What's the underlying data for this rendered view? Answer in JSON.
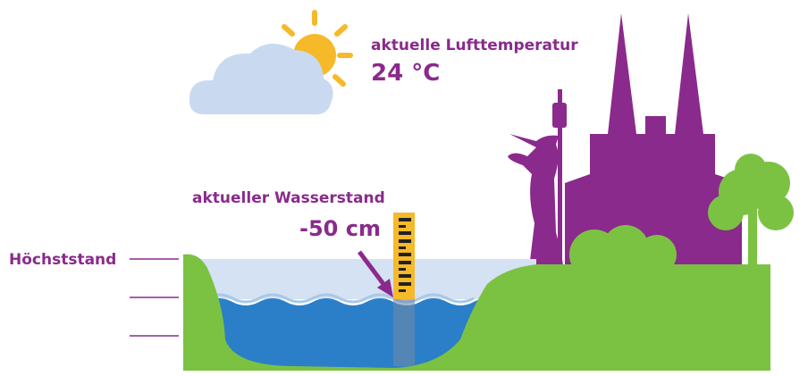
{
  "air": {
    "label": "aktuelle Lufttemperatur",
    "value": "24 °C"
  },
  "water": {
    "label": "aktueller Wasserstand",
    "value": "-50 cm"
  },
  "scale": {
    "max_label": "Höchststand"
  }
}
